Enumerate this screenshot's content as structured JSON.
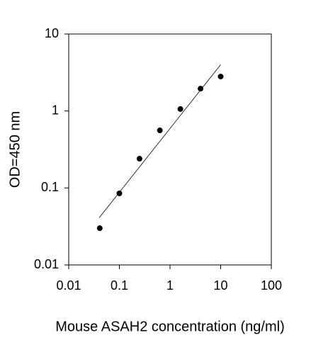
{
  "chart_data": {
    "type": "scatter",
    "x_label": "Mouse ASAH2 concentration (ng/ml)",
    "y_label": "OD=450 nm",
    "x_log": true,
    "y_log": true,
    "xlim": [
      0.01,
      100
    ],
    "xticks": [
      0.01,
      0.1,
      1,
      10,
      100
    ],
    "ylim": [
      0.01,
      10
    ],
    "yticks": [
      0.01,
      0.1,
      1,
      10
    ],
    "color": "#000000",
    "x": [
      0.041,
      0.1,
      0.25,
      0.63,
      1.6,
      4,
      10
    ],
    "values": [
      0.03,
      0.085,
      0.24,
      0.56,
      1.06,
      1.95,
      2.8
    ],
    "fit_line": {
      "x": [
        0.04,
        10
      ],
      "values": [
        0.041,
        4.0
      ]
    }
  }
}
